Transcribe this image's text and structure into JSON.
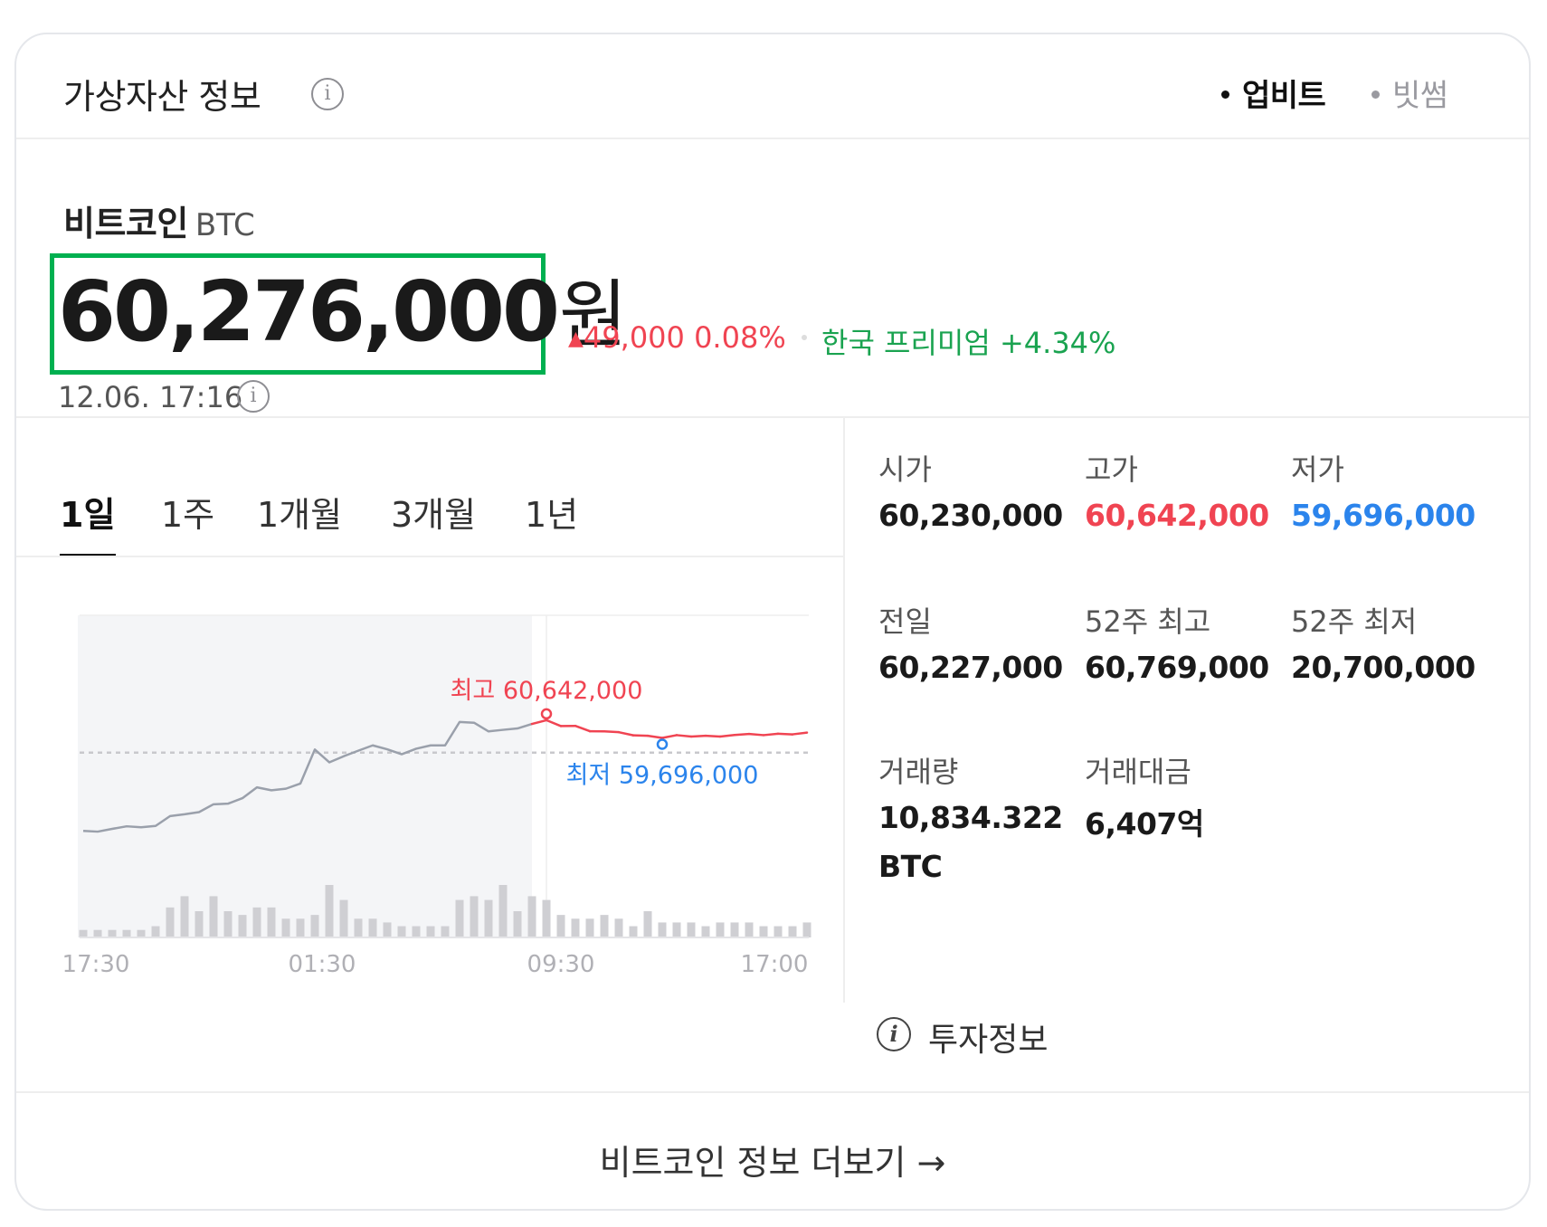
{
  "header": {
    "title": "가상자산 정보",
    "info_icon": "i",
    "exchanges": [
      {
        "label": "업비트",
        "selected": true
      },
      {
        "label": "빗썸",
        "selected": false
      }
    ]
  },
  "coin": {
    "name": "비트코인",
    "ticker": "BTC",
    "price": "60,276,000",
    "unit": "원",
    "change_arrow": "▲",
    "change_text": "49,000 0.08%",
    "premium_text": "한국 프리미엄 +4.34%",
    "timestamp": "12.06. 17:16"
  },
  "tabs": [
    {
      "label": "1일",
      "active": true
    },
    {
      "label": "1주",
      "active": false
    },
    {
      "label": "1개월",
      "active": false
    },
    {
      "label": "3개월",
      "active": false
    },
    {
      "label": "1년",
      "active": false
    }
  ],
  "stats": [
    {
      "label": "시가",
      "value": "60,230,000",
      "color": "default"
    },
    {
      "label": "고가",
      "value": "60,642,000",
      "color": "red"
    },
    {
      "label": "저가",
      "value": "59,696,000",
      "color": "blue"
    },
    {
      "label": "전일",
      "value": "60,227,000",
      "color": "default"
    },
    {
      "label": "52주 최고",
      "value": "60,769,000",
      "color": "default"
    },
    {
      "label": "52주 최저",
      "value": "20,700,000",
      "color": "default"
    },
    {
      "label": "거래량",
      "value": "10,834.322",
      "value2": "BTC",
      "color": "default"
    },
    {
      "label": "거래대금",
      "value": "6,407억",
      "color": "default"
    }
  ],
  "invest_info": {
    "label": "투자정보",
    "icon": "i"
  },
  "more_link": "비트코인 정보 더보기 →",
  "colors": {
    "up": "#f04452",
    "down": "#2b84ec",
    "premium": "#1aa350",
    "highlight_box": "#00b050"
  },
  "chart_data": {
    "type": "line",
    "x_tick_labels": [
      "17:30",
      "01:30",
      "09:30",
      "17:00"
    ],
    "high_label": "최고 60,642,000",
    "low_label": "최저 59,696,000",
    "high_value": 60642000,
    "low_value": 59696000,
    "reference_value": 60227000,
    "ylim": [
      59500000,
      60750000
    ],
    "grid": false,
    "price_series": [
      59830000,
      59826000,
      59840000,
      59853000,
      59848000,
      59855000,
      59905000,
      59914000,
      59925000,
      59965000,
      59968000,
      59996000,
      60051000,
      60036000,
      60044000,
      60070000,
      60243000,
      60178000,
      60209000,
      60237000,
      60264000,
      60244000,
      60219000,
      60247000,
      60264000,
      60264000,
      60383000,
      60379000,
      60335000,
      60343000,
      60350000,
      60373000,
      60392000,
      60362000,
      60363000,
      60336000,
      60335000,
      60331000,
      60315000,
      60313000,
      60302000,
      60316000,
      60309000,
      60313000,
      60309000,
      60317000,
      60322000,
      60316000,
      60323000,
      60320000,
      60329000
    ],
    "volume_series": [
      2,
      2,
      2,
      2,
      2,
      3,
      8,
      11,
      7,
      11,
      7,
      6,
      8,
      8,
      5,
      5,
      6,
      14,
      10,
      5,
      5,
      4,
      3,
      3,
      3,
      3,
      10,
      11,
      10,
      14,
      7,
      11,
      10,
      6,
      5,
      5,
      6,
      5,
      3,
      7,
      4,
      4,
      4,
      3,
      4,
      4,
      4,
      3,
      3,
      3,
      4
    ],
    "highlighted_index_start": 31
  }
}
